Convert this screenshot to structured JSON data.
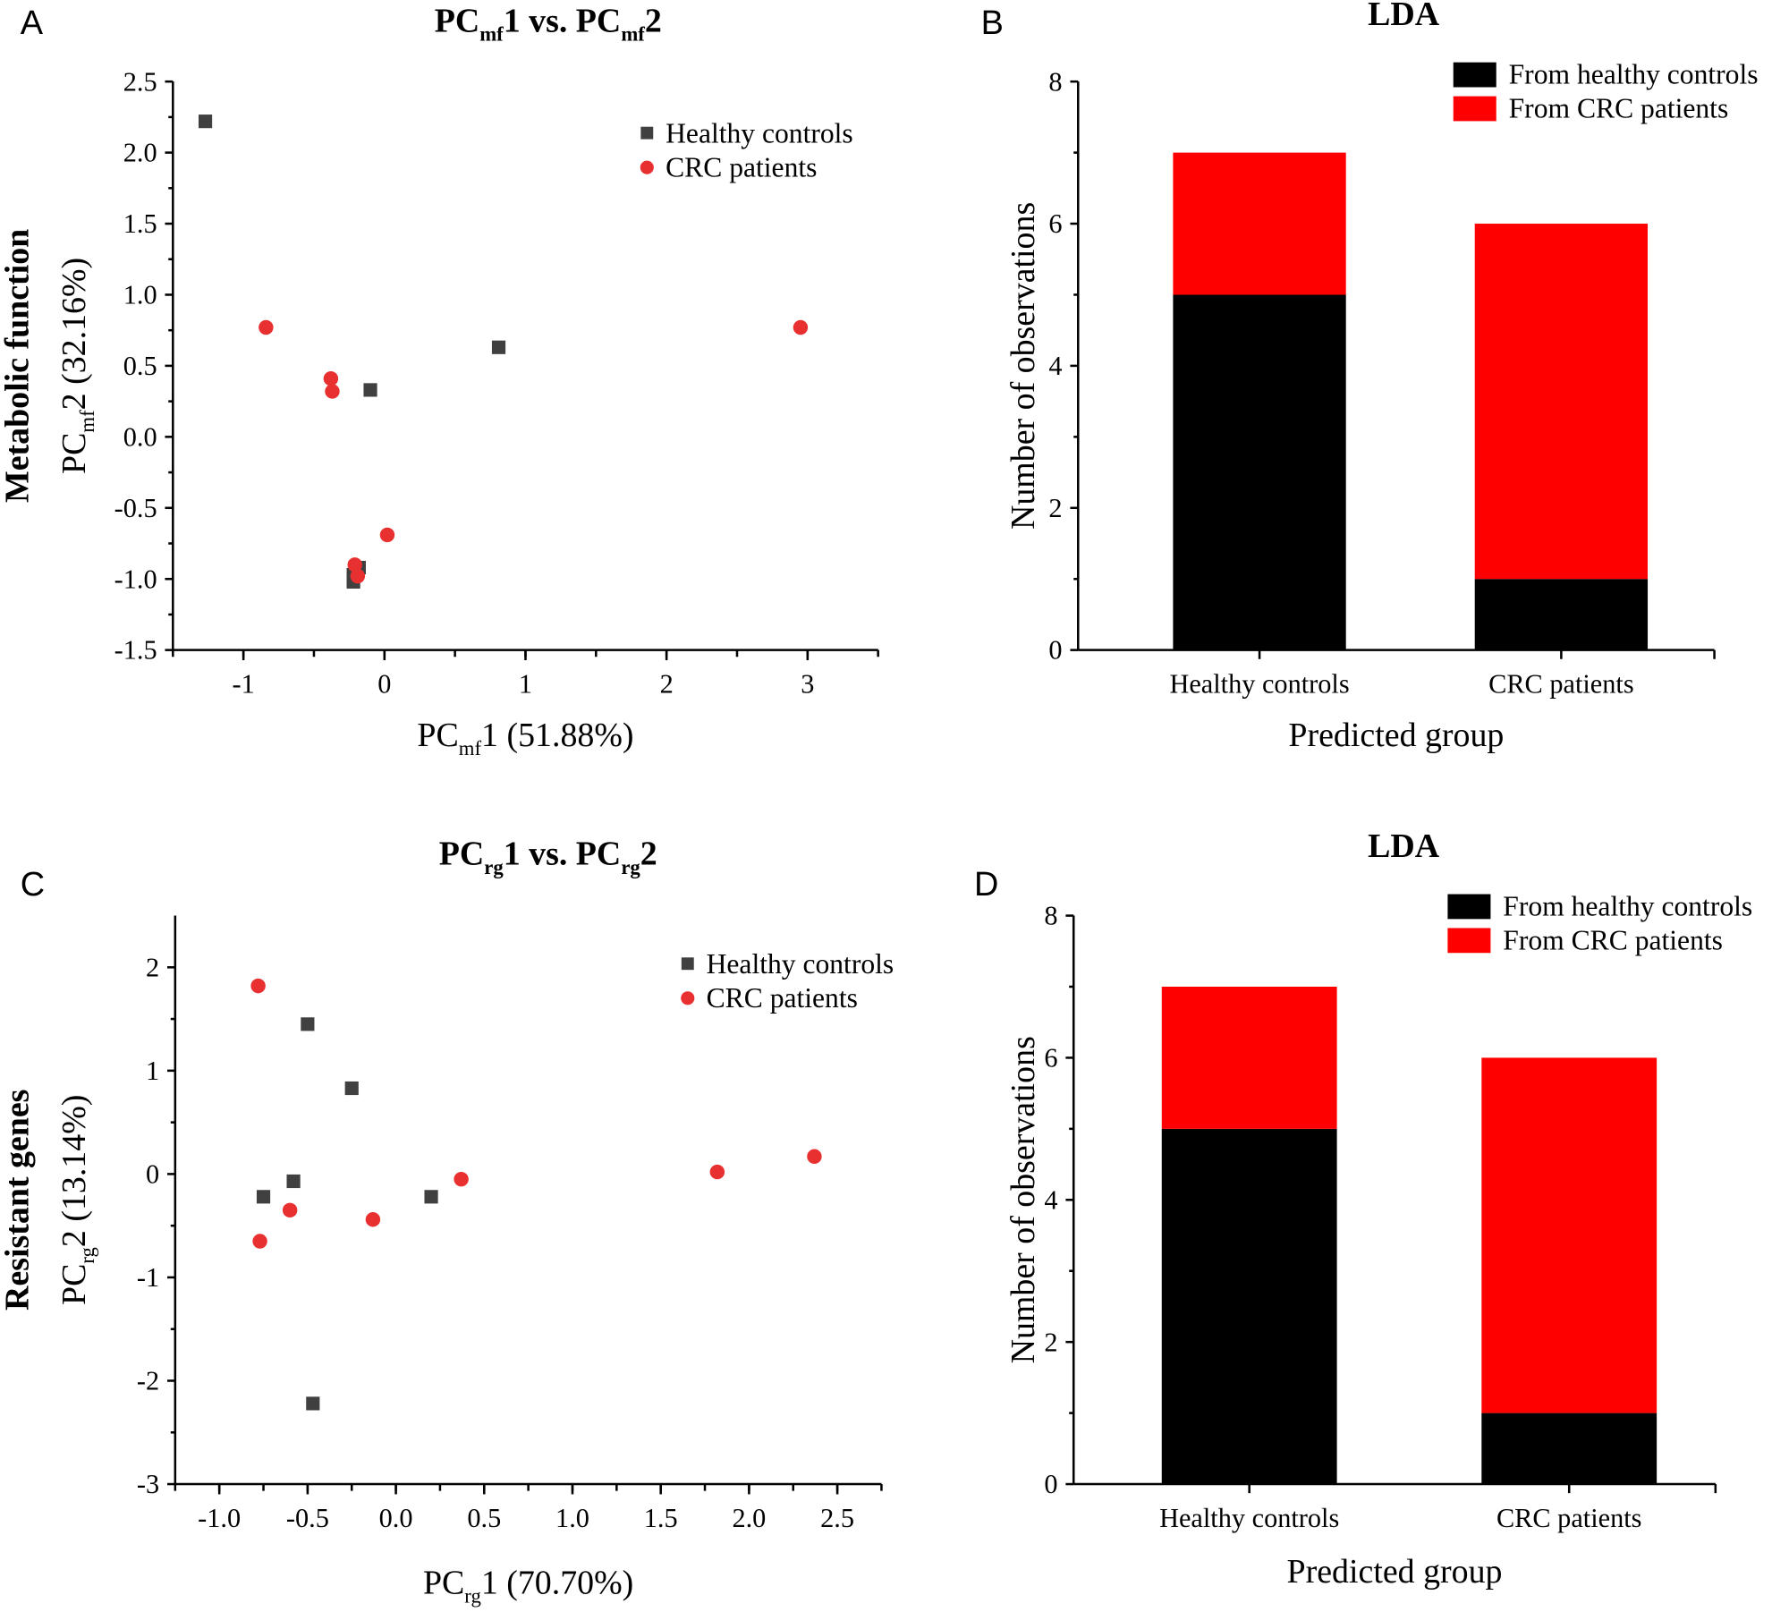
{
  "chart_data": [
    {
      "panel": "A",
      "type": "scatter",
      "title_parts": [
        {
          "t": "PC"
        },
        {
          "sub": "mf"
        },
        {
          "t": "1 vs. PC"
        },
        {
          "sub": "mf"
        },
        {
          "t": "2"
        }
      ],
      "side_label": "Metabolic function",
      "xlabel_parts": [
        {
          "t": "PC"
        },
        {
          "sub": "mf"
        },
        {
          "t": "1 (51.88%)"
        }
      ],
      "ylabel_parts": [
        {
          "t": "PC"
        },
        {
          "sub": "mf"
        },
        {
          "t": "2 (32.16%)"
        }
      ],
      "xlim": [
        -1.5,
        3.5
      ],
      "ylim": [
        -1.5,
        2.5
      ],
      "xticks": [
        -1,
        0,
        1,
        2,
        3
      ],
      "xtick_labels": [
        "-1",
        "0",
        "1",
        "2",
        "3"
      ],
      "yticks": [
        -1.5,
        -1.0,
        -0.5,
        0.0,
        0.5,
        1.0,
        1.5,
        2.0,
        2.5
      ],
      "ytick_labels": [
        "-1.5",
        "-1.0",
        "-0.5",
        "0.0",
        "0.5",
        "1.0",
        "1.5",
        "2.0",
        "2.5"
      ],
      "legend": "top-right",
      "series": [
        {
          "name": "Healthy controls",
          "marker": "square",
          "color": "#404040",
          "points": [
            [
              -1.27,
              2.22
            ],
            [
              0.81,
              0.63
            ],
            [
              -0.1,
              0.33
            ],
            [
              -0.18,
              -0.92
            ],
            [
              -0.22,
              -1.02
            ],
            [
              -0.22,
              -0.97
            ]
          ]
        },
        {
          "name": "CRC patients",
          "marker": "circle",
          "color": "#e83030",
          "points": [
            [
              -0.84,
              0.77
            ],
            [
              -0.38,
              0.41
            ],
            [
              -0.37,
              0.32
            ],
            [
              2.95,
              0.77
            ],
            [
              0.02,
              -0.69
            ],
            [
              -0.21,
              -0.9
            ],
            [
              -0.19,
              -0.98
            ]
          ]
        }
      ]
    },
    {
      "panel": "B",
      "type": "bar",
      "stacked": true,
      "title": "LDA",
      "xlabel": "Predicted group",
      "ylabel": "Number of observations",
      "ylim": [
        0,
        8
      ],
      "yticks": [
        0,
        2,
        4,
        6,
        8
      ],
      "ytick_labels": [
        "0",
        "2",
        "4",
        "6",
        "8"
      ],
      "categories": [
        "Healthy controls",
        "CRC patients"
      ],
      "legend": "top-right",
      "series": [
        {
          "name": "From healthy controls",
          "color": "#000000",
          "values": [
            5,
            1
          ]
        },
        {
          "name": "From CRC patients",
          "color": "#ff0000",
          "values": [
            2,
            5
          ]
        }
      ]
    },
    {
      "panel": "C",
      "type": "scatter",
      "title_parts": [
        {
          "t": "PC"
        },
        {
          "sub": "rg"
        },
        {
          "t": "1 vs. PC"
        },
        {
          "sub": "rg"
        },
        {
          "t": "2"
        }
      ],
      "side_label": "Resistant genes",
      "xlabel_parts": [
        {
          "t": "PC"
        },
        {
          "sub": "rg"
        },
        {
          "t": "1 (70.70%)"
        }
      ],
      "ylabel_parts": [
        {
          "t": "PC"
        },
        {
          "sub": "rg"
        },
        {
          "t": "2 (13.14%)"
        }
      ],
      "xlim": [
        -1.25,
        2.75
      ],
      "ylim": [
        -3,
        2.5
      ],
      "xticks": [
        -1.0,
        -0.5,
        0.0,
        0.5,
        1.0,
        1.5,
        2.0,
        2.5
      ],
      "xtick_labels": [
        "-1.0",
        "-0.5",
        "0.0",
        "0.5",
        "1.0",
        "1.5",
        "2.0",
        "2.5"
      ],
      "yticks": [
        -3,
        -2,
        -1,
        0,
        1,
        2
      ],
      "ytick_labels": [
        "-3",
        "-2",
        "-1",
        "0",
        "1",
        "2"
      ],
      "legend": "top-right",
      "series": [
        {
          "name": "Healthy controls",
          "marker": "square",
          "color": "#404040",
          "points": [
            [
              -0.5,
              1.45
            ],
            [
              -0.25,
              0.83
            ],
            [
              -0.58,
              -0.07
            ],
            [
              -0.75,
              -0.22
            ],
            [
              0.2,
              -0.22
            ],
            [
              -0.47,
              -2.22
            ]
          ]
        },
        {
          "name": "CRC patients",
          "marker": "circle",
          "color": "#e83030",
          "points": [
            [
              -0.78,
              1.82
            ],
            [
              -0.6,
              -0.35
            ],
            [
              -0.77,
              -0.65
            ],
            [
              -0.13,
              -0.44
            ],
            [
              0.37,
              -0.05
            ],
            [
              1.82,
              0.02
            ],
            [
              2.37,
              0.17
            ]
          ]
        }
      ]
    },
    {
      "panel": "D",
      "type": "bar",
      "stacked": true,
      "title": "LDA",
      "xlabel": "Predicted group",
      "ylabel": "Number of observations",
      "ylim": [
        0,
        8
      ],
      "yticks": [
        0,
        2,
        4,
        6,
        8
      ],
      "ytick_labels": [
        "0",
        "2",
        "4",
        "6",
        "8"
      ],
      "categories": [
        "Healthy controls",
        "CRC patients"
      ],
      "legend": "top-right",
      "series": [
        {
          "name": "From healthy controls",
          "color": "#000000",
          "values": [
            5,
            1
          ]
        },
        {
          "name": "From CRC patients",
          "color": "#ff0000",
          "values": [
            2,
            5
          ]
        }
      ]
    }
  ]
}
